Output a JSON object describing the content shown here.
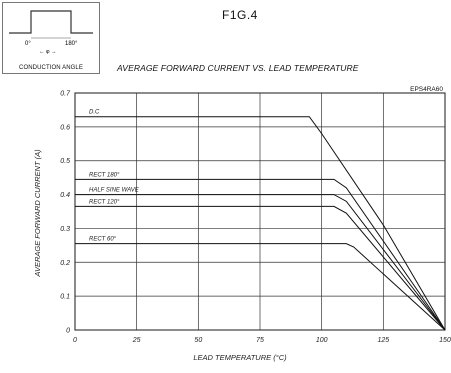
{
  "figure_label": "F1G.4",
  "inset": {
    "label_left": "0°",
    "label_right": "180°",
    "label_theta": "← φ →",
    "caption": "CONDUCTION ANGLE"
  },
  "title": "AVERAGE FORWARD CURRENT VS. LEAD TEMPERATURE",
  "part_number": "EPS4RA60",
  "chart_data": {
    "type": "line",
    "title": "AVERAGE FORWARD CURRENT VS. LEAD TEMPERATURE",
    "xlabel": "LEAD TEMPERATURE (°C)",
    "ylabel": "AVERAGE FORWARD CURRENT (A)",
    "xlim": [
      0,
      150
    ],
    "ylim": [
      0,
      0.7
    ],
    "xticks": [
      0,
      25,
      50,
      75,
      100,
      125,
      150
    ],
    "yticks": [
      0,
      0.1,
      0.2,
      0.3,
      0.4,
      0.5,
      0.6,
      0.7
    ],
    "ytick_labels": [
      "0",
      "0.1",
      "0.2",
      "0.3",
      "0.4",
      "0.5",
      "0.6",
      "0.7"
    ],
    "grid": true,
    "series": [
      {
        "name": "D.C",
        "x": [
          0,
          95,
          100,
          125,
          150
        ],
        "y": [
          0.63,
          0.63,
          0.58,
          0.31,
          0
        ]
      },
      {
        "name": "RECT 180°",
        "x": [
          0,
          105,
          110,
          150
        ],
        "y": [
          0.445,
          0.445,
          0.42,
          0
        ]
      },
      {
        "name": "HALF SINE WAVE",
        "x": [
          0,
          105,
          110,
          150
        ],
        "y": [
          0.4,
          0.4,
          0.38,
          0
        ]
      },
      {
        "name": "RECT 120°",
        "x": [
          0,
          105,
          110,
          150
        ],
        "y": [
          0.365,
          0.365,
          0.345,
          0
        ]
      },
      {
        "name": "RECT 60°",
        "x": [
          0,
          110,
          113,
          150
        ],
        "y": [
          0.255,
          0.255,
          0.245,
          0
        ]
      }
    ]
  }
}
